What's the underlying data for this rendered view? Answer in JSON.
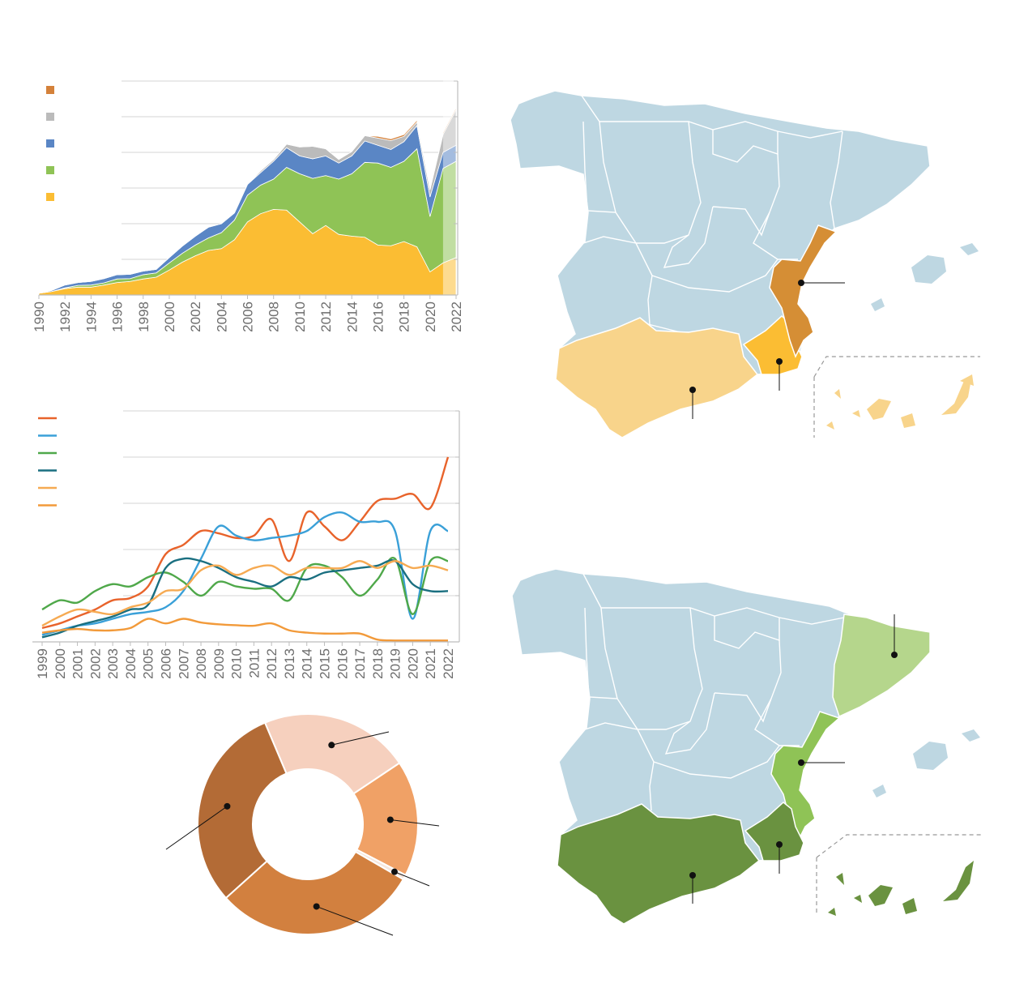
{
  "chart_data": [
    {
      "type": "area",
      "stacked": true,
      "x": [
        1990,
        1991,
        1992,
        1993,
        1994,
        1995,
        1996,
        1997,
        1998,
        1999,
        2000,
        2001,
        2002,
        2003,
        2004,
        2005,
        2006,
        2007,
        2008,
        2009,
        2010,
        2011,
        2012,
        2013,
        2014,
        2015,
        2016,
        2017,
        2018,
        2019,
        2020,
        2021,
        2022
      ],
      "x_ticks": [
        "1990",
        "1992",
        "1994",
        "1996",
        "1998",
        "2000",
        "2002",
        "2004",
        "2006",
        "2008",
        "2010",
        "2012",
        "2014",
        "2016",
        "2018",
        "2020",
        "2022"
      ],
      "ylim": [
        0,
        6
      ],
      "grid": true,
      "legend_position": "top-left",
      "projected_from": 2021,
      "series": [
        {
          "color": "#fbbd33",
          "values": [
            0.05,
            0.1,
            0.18,
            0.22,
            0.22,
            0.28,
            0.35,
            0.38,
            0.45,
            0.5,
            0.7,
            0.92,
            1.1,
            1.25,
            1.3,
            1.55,
            2.05,
            2.28,
            2.4,
            2.38,
            2.05,
            1.72,
            1.95,
            1.7,
            1.65,
            1.62,
            1.4,
            1.38,
            1.5,
            1.35,
            0.65,
            0.9,
            1.05
          ]
        },
        {
          "color": "#8fc356",
          "values": [
            0.0,
            0.0,
            0.02,
            0.05,
            0.06,
            0.06,
            0.1,
            0.08,
            0.12,
            0.12,
            0.2,
            0.25,
            0.3,
            0.35,
            0.45,
            0.55,
            0.75,
            0.8,
            0.85,
            1.2,
            1.35,
            1.55,
            1.4,
            1.55,
            1.75,
            2.1,
            2.3,
            2.2,
            2.25,
            2.75,
            1.55,
            2.65,
            2.7
          ]
        },
        {
          "color": "#5a86c5",
          "values": [
            0.0,
            0.03,
            0.08,
            0.08,
            0.1,
            0.12,
            0.12,
            0.12,
            0.1,
            0.1,
            0.15,
            0.2,
            0.25,
            0.3,
            0.25,
            0.2,
            0.3,
            0.35,
            0.5,
            0.55,
            0.5,
            0.55,
            0.55,
            0.45,
            0.5,
            0.6,
            0.5,
            0.5,
            0.55,
            0.65,
            0.55,
            0.45,
            0.45
          ]
        },
        {
          "color": "#bbbbbb",
          "values": [
            0.0,
            0.0,
            0.0,
            0.0,
            0.0,
            0.0,
            0.0,
            0.0,
            0.0,
            0.0,
            0.0,
            0.0,
            0.0,
            0.0,
            0.0,
            0.0,
            0.0,
            0.05,
            0.05,
            0.1,
            0.25,
            0.35,
            0.2,
            0.1,
            0.12,
            0.15,
            0.2,
            0.25,
            0.15,
            0.1,
            0.2,
            0.5,
            1.0
          ]
        },
        {
          "color": "#d4813a",
          "values": [
            0.0,
            0.0,
            0.0,
            0.0,
            0.0,
            0.0,
            0.0,
            0.0,
            0.0,
            0.0,
            0.0,
            0.0,
            0.0,
            0.0,
            0.0,
            0.0,
            0.0,
            0.0,
            0.0,
            0.0,
            0.0,
            0.0,
            0.0,
            0.0,
            0.0,
            0.0,
            0.05,
            0.05,
            0.05,
            0.05,
            0.02,
            0.05,
            0.05
          ]
        }
      ]
    },
    {
      "type": "line",
      "x": [
        1999,
        2000,
        2001,
        2002,
        2003,
        2004,
        2005,
        2006,
        2007,
        2008,
        2009,
        2010,
        2011,
        2012,
        2013,
        2014,
        2015,
        2016,
        2017,
        2018,
        2019,
        2020,
        2021,
        2022
      ],
      "x_ticks": [
        "1999",
        "2000",
        "2001",
        "2002",
        "2003",
        "2004",
        "2005",
        "2006",
        "2007",
        "2008",
        "2009",
        "2010",
        "2011",
        "2012",
        "2013",
        "2014",
        "2015",
        "2016",
        "2017",
        "2018",
        "2019",
        "2020",
        "2021",
        "2022"
      ],
      "ylim": [
        0,
        5
      ],
      "grid": true,
      "legend_position": "top-left",
      "series": [
        {
          "color": "#e8632b",
          "values": [
            0.3,
            0.4,
            0.55,
            0.7,
            0.9,
            0.95,
            1.2,
            1.9,
            2.1,
            2.4,
            2.35,
            2.25,
            2.3,
            2.65,
            1.75,
            2.8,
            2.5,
            2.2,
            2.6,
            3.05,
            3.1,
            3.2,
            2.9,
            4.0
          ]
        },
        {
          "color": "#3aa0d8",
          "values": [
            0.15,
            0.25,
            0.35,
            0.4,
            0.5,
            0.6,
            0.65,
            0.75,
            1.1,
            1.8,
            2.5,
            2.3,
            2.2,
            2.25,
            2.3,
            2.4,
            2.7,
            2.8,
            2.6,
            2.6,
            2.4,
            0.5,
            2.4,
            2.4
          ]
        },
        {
          "color": "#4fa84a",
          "values": [
            0.7,
            0.9,
            0.85,
            1.1,
            1.25,
            1.2,
            1.4,
            1.5,
            1.3,
            1.0,
            1.3,
            1.2,
            1.15,
            1.15,
            0.9,
            1.6,
            1.65,
            1.4,
            1.0,
            1.35,
            1.8,
            0.6,
            1.75,
            1.75
          ]
        },
        {
          "color": "#1a6f80",
          "values": [
            0.1,
            0.2,
            0.35,
            0.45,
            0.55,
            0.7,
            0.8,
            1.6,
            1.8,
            1.75,
            1.6,
            1.4,
            1.3,
            1.2,
            1.4,
            1.35,
            1.5,
            1.55,
            1.6,
            1.65,
            1.75,
            1.25,
            1.1,
            1.1
          ]
        },
        {
          "color": "#f6aa52",
          "values": [
            0.35,
            0.55,
            0.7,
            0.65,
            0.6,
            0.75,
            0.85,
            1.1,
            1.15,
            1.55,
            1.65,
            1.45,
            1.6,
            1.65,
            1.45,
            1.6,
            1.6,
            1.6,
            1.75,
            1.6,
            1.75,
            1.6,
            1.65,
            1.55
          ]
        },
        {
          "color": "#f29a3a",
          "values": [
            0.2,
            0.25,
            0.28,
            0.25,
            0.25,
            0.3,
            0.5,
            0.4,
            0.5,
            0.42,
            0.38,
            0.36,
            0.35,
            0.4,
            0.25,
            0.2,
            0.18,
            0.18,
            0.18,
            0.05,
            0.03,
            0.03,
            0.03,
            0.03
          ]
        }
      ]
    },
    {
      "type": "pie",
      "donut": true,
      "slices": [
        {
          "color": "#f6d0be",
          "value": 22
        },
        {
          "color": "#f0a166",
          "value": 17
        },
        {
          "color": "#f6e6dc",
          "value": 0.7
        },
        {
          "color": "#d2803f",
          "value": 30
        },
        {
          "color": "#b36b36",
          "value": 30.3
        }
      ]
    }
  ],
  "maps": [
    {
      "colors": {
        "base": "#bed7e2",
        "valencia": "#d58e35",
        "murcia": "#fbbd33",
        "andalucia": "#f8d48b"
      }
    },
    {
      "colors": {
        "base": "#bed7e2",
        "catalonia": "#b5d68c",
        "valencia": "#8fc356",
        "murcia": "#6a9240",
        "andalucia": "#6a9240"
      }
    }
  ]
}
